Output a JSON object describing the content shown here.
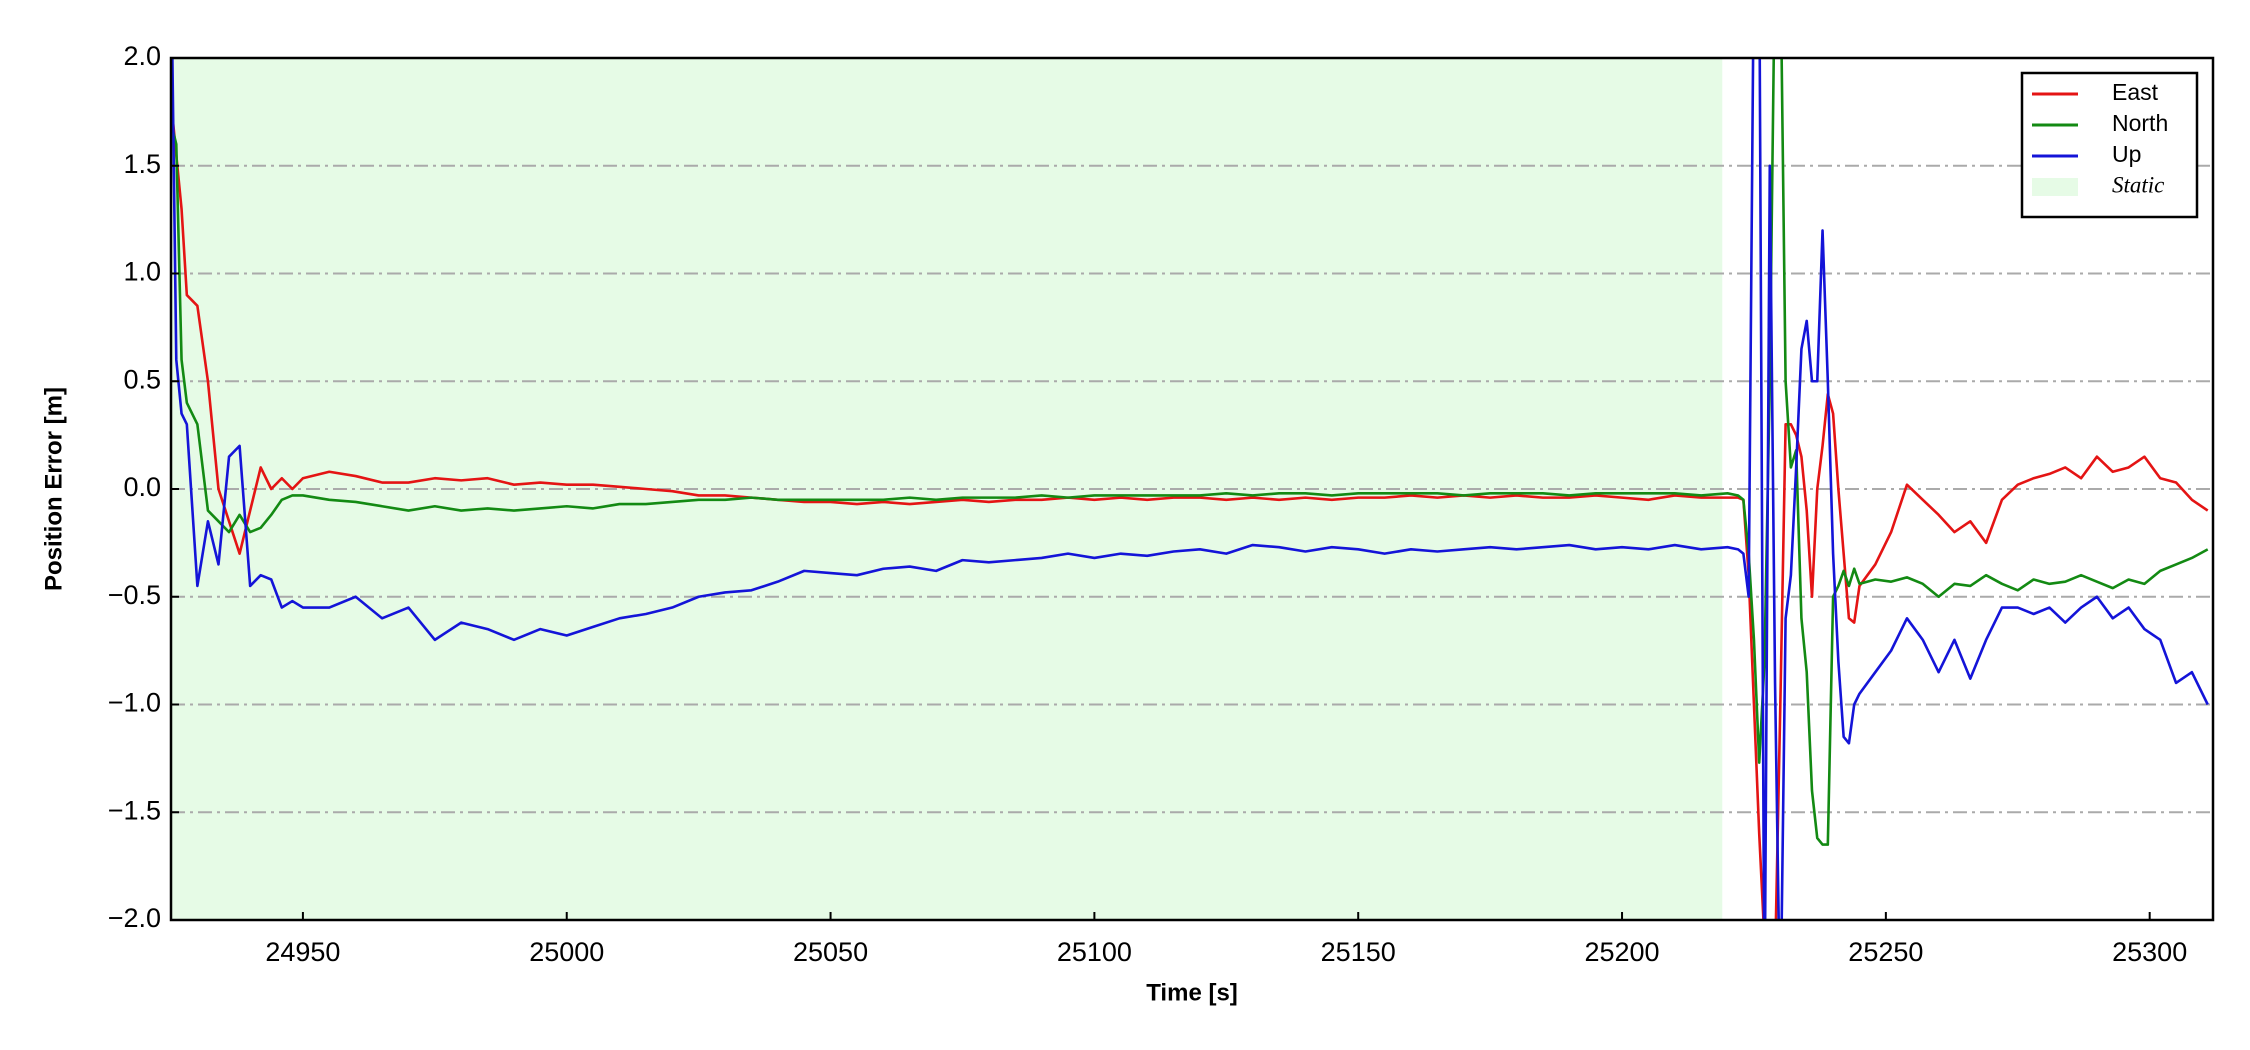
{
  "chart_data": {
    "type": "line",
    "xlabel": "Time [s]",
    "ylabel": "Position Error [m]",
    "x": [
      24925,
      24926,
      24927,
      24928,
      24930,
      24932,
      24934,
      24936,
      24938,
      24940,
      24942,
      24944,
      24946,
      24948,
      24950,
      24955,
      24960,
      24965,
      24970,
      24975,
      24980,
      24985,
      24990,
      24995,
      25000,
      25005,
      25010,
      25015,
      25020,
      25025,
      25030,
      25035,
      25040,
      25045,
      25050,
      25055,
      25060,
      25065,
      25070,
      25075,
      25080,
      25085,
      25090,
      25095,
      25100,
      25105,
      25110,
      25115,
      25120,
      25125,
      25130,
      25135,
      25140,
      25145,
      25150,
      25155,
      25160,
      25165,
      25170,
      25175,
      25180,
      25185,
      25190,
      25195,
      25200,
      25205,
      25210,
      25215,
      25220,
      25222,
      25223,
      25224,
      25225,
      25226,
      25227,
      25228,
      25229,
      25230,
      25231,
      25232,
      25233,
      25234,
      25235,
      25236,
      25237,
      25238,
      25239,
      25240,
      25241,
      25242,
      25243,
      25244,
      25245,
      25248,
      25251,
      25254,
      25257,
      25260,
      25263,
      25266,
      25269,
      25272,
      25275,
      25278,
      25281,
      25284,
      25287,
      25290,
      25293,
      25296,
      25299,
      25302,
      25305,
      25308,
      25311
    ],
    "series": [
      {
        "name": "East",
        "color": "#e41414",
        "values": [
          1.8,
          1.55,
          1.3,
          0.9,
          0.85,
          0.5,
          0.0,
          -0.15,
          -0.3,
          -0.1,
          0.1,
          0.0,
          0.05,
          0.0,
          0.05,
          0.08,
          0.06,
          0.03,
          0.03,
          0.05,
          0.04,
          0.05,
          0.02,
          0.03,
          0.02,
          0.02,
          0.01,
          0.0,
          -0.01,
          -0.03,
          -0.03,
          -0.04,
          -0.05,
          -0.06,
          -0.06,
          -0.07,
          -0.06,
          -0.07,
          -0.06,
          -0.05,
          -0.06,
          -0.05,
          -0.05,
          -0.04,
          -0.05,
          -0.04,
          -0.05,
          -0.04,
          -0.04,
          -0.05,
          -0.04,
          -0.05,
          -0.04,
          -0.05,
          -0.04,
          -0.04,
          -0.03,
          -0.04,
          -0.03,
          -0.04,
          -0.03,
          -0.04,
          -0.04,
          -0.03,
          -0.04,
          -0.05,
          -0.03,
          -0.04,
          -0.04,
          -0.04,
          -0.05,
          -0.4,
          -1.0,
          -1.6,
          -2.1,
          -2.3,
          -2.2,
          -1.0,
          0.3,
          0.3,
          0.25,
          0.15,
          -0.1,
          -0.5,
          0.0,
          0.2,
          0.44,
          0.35,
          0.0,
          -0.3,
          -0.6,
          -0.62,
          -0.45,
          -0.35,
          -0.2,
          0.02,
          -0.05,
          -0.12,
          -0.2,
          -0.15,
          -0.25,
          -0.05,
          0.02,
          0.05,
          0.07,
          0.1,
          0.05,
          0.15,
          0.08,
          0.1,
          0.15,
          0.05,
          0.03,
          -0.05,
          -0.1
        ]
      },
      {
        "name": "North",
        "color": "#138a13",
        "values": [
          1.7,
          1.6,
          0.6,
          0.4,
          0.3,
          -0.1,
          -0.15,
          -0.2,
          -0.12,
          -0.2,
          -0.18,
          -0.12,
          -0.05,
          -0.03,
          -0.03,
          -0.05,
          -0.06,
          -0.08,
          -0.1,
          -0.08,
          -0.1,
          -0.09,
          -0.1,
          -0.09,
          -0.08,
          -0.09,
          -0.07,
          -0.07,
          -0.06,
          -0.05,
          -0.05,
          -0.04,
          -0.05,
          -0.05,
          -0.05,
          -0.05,
          -0.05,
          -0.04,
          -0.05,
          -0.04,
          -0.04,
          -0.04,
          -0.03,
          -0.04,
          -0.03,
          -0.03,
          -0.03,
          -0.03,
          -0.03,
          -0.02,
          -0.03,
          -0.02,
          -0.02,
          -0.03,
          -0.02,
          -0.02,
          -0.02,
          -0.02,
          -0.03,
          -0.02,
          -0.02,
          -0.02,
          -0.03,
          -0.02,
          -0.02,
          -0.02,
          -0.02,
          -0.03,
          -0.02,
          -0.03,
          -0.05,
          -0.3,
          -0.7,
          -1.27,
          -0.8,
          0.5,
          2.5,
          2.5,
          0.5,
          0.1,
          0.18,
          -0.6,
          -0.85,
          -1.4,
          -1.62,
          -1.65,
          -1.65,
          -0.5,
          -0.45,
          -0.38,
          -0.45,
          -0.37,
          -0.44,
          -0.42,
          -0.43,
          -0.41,
          -0.44,
          -0.5,
          -0.44,
          -0.45,
          -0.4,
          -0.44,
          -0.47,
          -0.42,
          -0.44,
          -0.43,
          -0.4,
          -0.43,
          -0.46,
          -0.42,
          -0.44,
          -0.38,
          -0.35,
          -0.32,
          -0.28
        ]
      },
      {
        "name": "Up",
        "color": "#1414d8",
        "values": [
          2.5,
          0.6,
          0.35,
          0.3,
          -0.45,
          -0.15,
          -0.35,
          0.15,
          0.2,
          -0.45,
          -0.4,
          -0.42,
          -0.55,
          -0.52,
          -0.55,
          -0.55,
          -0.5,
          -0.6,
          -0.55,
          -0.7,
          -0.62,
          -0.65,
          -0.7,
          -0.65,
          -0.68,
          -0.64,
          -0.6,
          -0.58,
          -0.55,
          -0.5,
          -0.48,
          -0.47,
          -0.43,
          -0.38,
          -0.39,
          -0.4,
          -0.37,
          -0.36,
          -0.38,
          -0.33,
          -0.34,
          -0.33,
          -0.32,
          -0.3,
          -0.32,
          -0.3,
          -0.31,
          -0.29,
          -0.28,
          -0.3,
          -0.26,
          -0.27,
          -0.29,
          -0.27,
          -0.28,
          -0.3,
          -0.28,
          -0.29,
          -0.28,
          -0.27,
          -0.28,
          -0.27,
          -0.26,
          -0.28,
          -0.27,
          -0.28,
          -0.26,
          -0.28,
          -0.27,
          -0.28,
          -0.3,
          -0.5,
          2.5,
          2.5,
          -2.5,
          1.5,
          -0.9,
          -2.5,
          -0.6,
          -0.4,
          0.1,
          0.65,
          0.78,
          0.5,
          0.5,
          1.2,
          0.5,
          -0.3,
          -0.8,
          -1.15,
          -1.18,
          -1.0,
          -0.95,
          -0.85,
          -0.75,
          -0.6,
          -0.7,
          -0.85,
          -0.7,
          -0.88,
          -0.7,
          -0.55,
          -0.55,
          -0.58,
          -0.55,
          -0.62,
          -0.55,
          -0.5,
          -0.6,
          -0.55,
          -0.65,
          -0.7,
          -0.9,
          -0.85,
          -1.0
        ]
      }
    ],
    "shaded_span": {
      "name": "Static",
      "x": [
        24925,
        25219
      ],
      "color": "#e6fbe6"
    },
    "xlim": [
      24925,
      25312
    ],
    "ylim": [
      -2,
      2
    ],
    "xticks": [
      24950,
      25000,
      25050,
      25100,
      25150,
      25200,
      25250,
      25300
    ],
    "yticks": [
      {
        "value": -2,
        "label": "−2.0"
      },
      {
        "value": -1.5,
        "label": "−1.5"
      },
      {
        "value": -1,
        "label": "−1.0"
      },
      {
        "value": -0.5,
        "label": "−0.5"
      },
      {
        "value": 0,
        "label": "0.0"
      },
      {
        "value": 0.5,
        "label": "0.5"
      },
      {
        "value": 1,
        "label": "1.0"
      },
      {
        "value": 1.5,
        "label": "1.5"
      },
      {
        "value": 2,
        "label": "2.0"
      }
    ],
    "grid": true,
    "legend": "upper right"
  }
}
